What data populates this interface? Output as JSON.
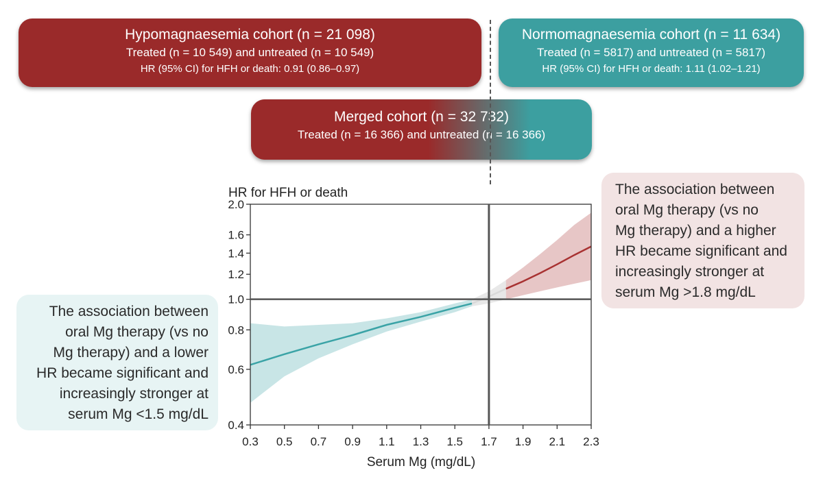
{
  "boxes": {
    "hypo": {
      "line1": "Hypomagnaesemia cohort (n = 21 098)",
      "line2": "Treated (n = 10 549) and untreated (n = 10 549)",
      "line3": "HR (95% CI) for HFH or death: 0.91 (0.86–0.97)"
    },
    "normo": {
      "line1": "Normomagnaesemia cohort (n = 11 634)",
      "line2": "Treated (n = 5817) and untreated (n = 5817)",
      "line3": "HR (95% CI) for HFH or death: 1.11 (1.02–1.21)"
    },
    "merged": {
      "line1": "Merged cohort (n = 32 732)",
      "line2": "Treated (n = 16 366) and untreated (n = 16 366)"
    }
  },
  "notes": {
    "left": [
      "The association between",
      "oral Mg therapy (vs no",
      "Mg therapy) and a lower",
      "HR became significant and",
      "increasingly stronger at",
      "serum Mg <1.5 mg/dL"
    ],
    "right": [
      "The association between",
      "oral Mg therapy (vs no",
      "Mg therapy) and a higher",
      "HR became significant and",
      "increasingly stronger at",
      "serum Mg >1.8 mg/dL"
    ]
  },
  "colors": {
    "red": "#9a2a2a",
    "teal": "#3c9fa0",
    "red_line": "#a83232",
    "teal_line": "#3aa3a6"
  },
  "chart_data": {
    "type": "line",
    "title": "",
    "ylabel": "HR for HFH or death",
    "xlabel": "Serum Mg (mg/dL)",
    "y_scale": "log",
    "xlim": [
      0.3,
      2.3
    ],
    "ylim": [
      0.4,
      2.0
    ],
    "x_ticks": [
      0.3,
      0.5,
      0.7,
      0.9,
      1.1,
      1.3,
      1.5,
      1.7,
      1.9,
      2.1,
      2.3
    ],
    "y_ticks": [
      0.4,
      0.6,
      0.8,
      1.0,
      1.2,
      1.4,
      1.6,
      2.0
    ],
    "y_tick_labels": [
      "0.4",
      "0.6",
      "0.8",
      "1.0",
      "1.2",
      "1.4",
      "1.6",
      "2.0"
    ],
    "reference_lines": {
      "y": 1.0,
      "x": 1.7
    },
    "series": [
      {
        "segment": "lower HR",
        "color": "#3aa3a6",
        "x": [
          0.3,
          0.5,
          0.7,
          0.9,
          1.1,
          1.3,
          1.5,
          1.6
        ],
        "y": [
          0.62,
          0.67,
          0.72,
          0.77,
          0.83,
          0.88,
          0.94,
          0.97
        ],
        "lower": [
          0.47,
          0.57,
          0.65,
          0.72,
          0.79,
          0.85,
          0.91,
          0.95
        ],
        "upper": [
          0.84,
          0.82,
          0.83,
          0.84,
          0.87,
          0.91,
          0.97,
          1.0
        ]
      },
      {
        "segment": "non-significant",
        "color": "#bdbdbd",
        "x": [
          1.6,
          1.7,
          1.8
        ],
        "y": [
          0.97,
          1.02,
          1.08
        ],
        "lower": [
          0.95,
          0.97,
          1.0
        ],
        "upper": [
          1.0,
          1.06,
          1.15
        ]
      },
      {
        "segment": "higher HR",
        "color": "#a83232",
        "x": [
          1.8,
          1.9,
          2.0,
          2.1,
          2.2,
          2.3
        ],
        "y": [
          1.08,
          1.14,
          1.21,
          1.29,
          1.38,
          1.47
        ],
        "lower": [
          1.0,
          1.03,
          1.06,
          1.09,
          1.12,
          1.15
        ],
        "upper": [
          1.15,
          1.26,
          1.39,
          1.54,
          1.72,
          1.88
        ]
      }
    ]
  }
}
